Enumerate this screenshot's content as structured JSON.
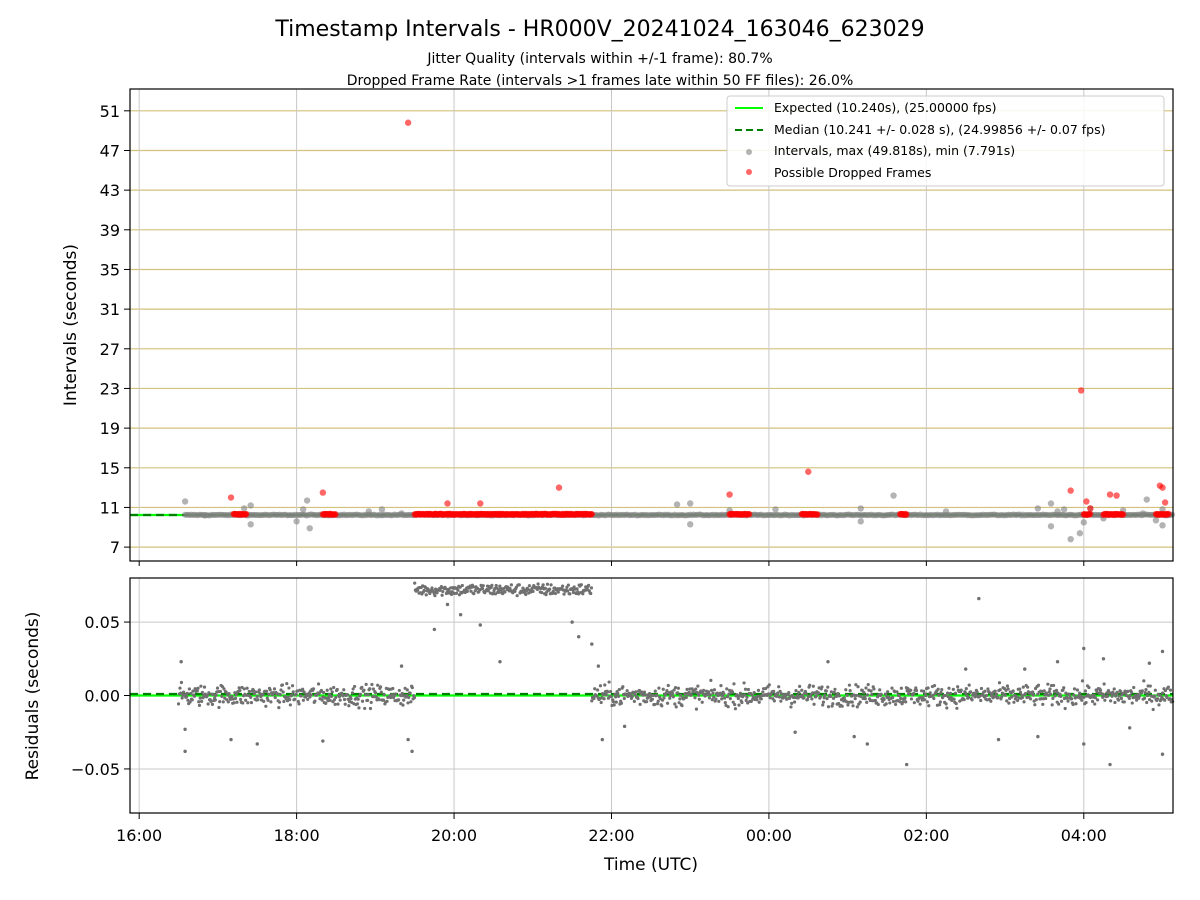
{
  "chart_data": [
    {
      "type": "scatter",
      "title": "Timestamp Intervals - HR000V_20241024_163046_623029",
      "subtitle_lines": [
        "Jitter Quality (intervals within +/-1 frame): 80.7%",
        "Dropped Frame Rate (intervals >1 frames late within 50 FF files): 26.0%"
      ],
      "ylabel": "Intervals (seconds)",
      "ylim": [
        5.6,
        53.2
      ],
      "yticks": [
        7,
        11,
        15,
        19,
        23,
        27,
        31,
        35,
        39,
        43,
        47,
        51
      ],
      "ytick_labels": [
        "7",
        "11",
        "15",
        "19",
        "23",
        "27",
        "31",
        "35",
        "39",
        "43",
        "47",
        "51"
      ],
      "grid": true,
      "legend_position": "top-right",
      "legend": [
        "Expected (10.240s), (25.00000 fps)",
        "Median (10.241 +/- 0.028 s), (24.99856 +/- 0.07 fps)",
        "Intervals, max (49.818s), min (7.791s)",
        "Possible Dropped Frames"
      ],
      "expected_interval": 10.24,
      "median_interval": 10.241,
      "colors": {
        "expected": "#00ff00",
        "median": "#008000",
        "intervals": "#808080",
        "dropped": "#ff0000",
        "hgrid": "#d4c17a",
        "vgrid": "#c8c8c8"
      },
      "series": [
        {
          "name": "Intervals, max (49.818s), min (7.791s)",
          "points": [
            [
              "16:35",
              11.6
            ],
            [
              "16:50",
              10.2
            ],
            [
              "17:20",
              10.9
            ],
            [
              "17:25",
              9.3
            ],
            [
              "17:25",
              11.2
            ],
            [
              "18:00",
              9.6
            ],
            [
              "18:05",
              10.8
            ],
            [
              "18:08",
              11.7
            ],
            [
              "18:10",
              8.9
            ],
            [
              "18:55",
              10.6
            ],
            [
              "19:05",
              10.8
            ],
            [
              "19:20",
              10.4
            ],
            [
              "22:50",
              11.3
            ],
            [
              "23:00",
              11.4
            ],
            [
              "23:00",
              9.3
            ],
            [
              "23:30",
              10.7
            ],
            [
              "00:05",
              10.8
            ],
            [
              "01:10",
              10.9
            ],
            [
              "01:10",
              9.6
            ],
            [
              "01:35",
              12.2
            ],
            [
              "02:15",
              10.6
            ],
            [
              "03:25",
              10.9
            ],
            [
              "03:35",
              11.4
            ],
            [
              "03:35",
              9.1
            ],
            [
              "03:40",
              10.6
            ],
            [
              "03:45",
              10.8
            ],
            [
              "03:50",
              7.8
            ],
            [
              "03:57",
              8.4
            ],
            [
              "04:00",
              9.5
            ],
            [
              "04:05",
              10.9
            ],
            [
              "04:15",
              9.9
            ],
            [
              "04:30",
              10.7
            ],
            [
              "04:45",
              10.4
            ],
            [
              "04:48",
              11.8
            ],
            [
              "04:55",
              9.7
            ],
            [
              "05:00",
              9.2
            ],
            [
              "05:00",
              10.8
            ]
          ]
        },
        {
          "name": "Possible Dropped Frames",
          "points": [
            [
              "17:10",
              12.0
            ],
            [
              "18:20",
              12.5
            ],
            [
              "19:25",
              49.8
            ],
            [
              "19:55",
              11.4
            ],
            [
              "20:20",
              11.4
            ],
            [
              "21:20",
              13.0
            ],
            [
              "23:30",
              12.3
            ],
            [
              "00:30",
              14.6
            ],
            [
              "03:50",
              12.7
            ],
            [
              "03:58",
              22.8
            ],
            [
              "04:02",
              11.6
            ],
            [
              "04:05",
              10.9
            ],
            [
              "04:20",
              12.3
            ],
            [
              "04:25",
              12.2
            ],
            [
              "04:58",
              13.2
            ],
            [
              "05:00",
              13.0
            ],
            [
              "05:02",
              11.5
            ]
          ],
          "clusters": [
            [
              "17:12",
              "17:22"
            ],
            [
              "18:20",
              "18:30"
            ],
            [
              "19:30",
              "21:45"
            ],
            [
              "23:30",
              "23:45"
            ],
            [
              "00:25",
              "00:37"
            ],
            [
              "01:40",
              "01:45"
            ],
            [
              "04:00",
              "04:05"
            ],
            [
              "04:15",
              "04:30"
            ],
            [
              "04:55",
              "05:05"
            ]
          ]
        }
      ]
    },
    {
      "type": "scatter",
      "xlabel": "Time (UTC)",
      "ylabel": "Residuals (seconds)",
      "ylim": [
        -0.08,
        0.08
      ],
      "yticks": [
        0.05,
        0.0,
        -0.05
      ],
      "ytick_labels": [
        "0.05",
        "0.00",
        "−0.05"
      ],
      "xlim": [
        "15:53",
        "05:08"
      ],
      "xtick_labels": [
        "16:00",
        "18:00",
        "20:00",
        "22:00",
        "00:00",
        "02:00",
        "04:00"
      ],
      "grid": true,
      "series": [
        {
          "name": "Residuals",
          "segments": [
            {
              "from": "16:30",
              "to": "19:30",
              "center": 0.0,
              "spread": 0.007
            },
            {
              "from": "19:30",
              "to": "21:45",
              "center": 0.072,
              "spread": 0.004
            },
            {
              "from": "21:45",
              "to": "05:08",
              "center": 0.0,
              "spread": 0.007
            }
          ],
          "outliers": [
            [
              "16:32",
              0.023
            ],
            [
              "16:35",
              -0.038
            ],
            [
              "16:35",
              -0.023
            ],
            [
              "17:10",
              -0.03
            ],
            [
              "17:30",
              -0.033
            ],
            [
              "18:20",
              -0.031
            ],
            [
              "19:20",
              0.02
            ],
            [
              "19:25",
              -0.03
            ],
            [
              "19:28",
              -0.038
            ],
            [
              "19:45",
              0.045
            ],
            [
              "19:55",
              0.062
            ],
            [
              "20:05",
              0.055
            ],
            [
              "20:20",
              0.048
            ],
            [
              "20:35",
              0.023
            ],
            [
              "21:30",
              0.05
            ],
            [
              "21:35",
              0.04
            ],
            [
              "21:45",
              0.035
            ],
            [
              "21:50",
              0.02
            ],
            [
              "21:53",
              -0.03
            ],
            [
              "22:10",
              -0.021
            ],
            [
              "00:20",
              -0.025
            ],
            [
              "00:45",
              0.023
            ],
            [
              "01:05",
              -0.028
            ],
            [
              "01:15",
              -0.033
            ],
            [
              "01:45",
              -0.047
            ],
            [
              "02:30",
              0.018
            ],
            [
              "02:40",
              0.066
            ],
            [
              "02:55",
              -0.03
            ],
            [
              "03:15",
              0.018
            ],
            [
              "03:25",
              -0.028
            ],
            [
              "03:40",
              0.023
            ],
            [
              "04:00",
              0.032
            ],
            [
              "04:00",
              -0.033
            ],
            [
              "04:15",
              0.025
            ],
            [
              "04:20",
              -0.047
            ],
            [
              "04:35",
              -0.022
            ],
            [
              "04:50",
              0.022
            ],
            [
              "05:00",
              0.03
            ],
            [
              "05:00",
              -0.04
            ]
          ]
        }
      ]
    }
  ]
}
